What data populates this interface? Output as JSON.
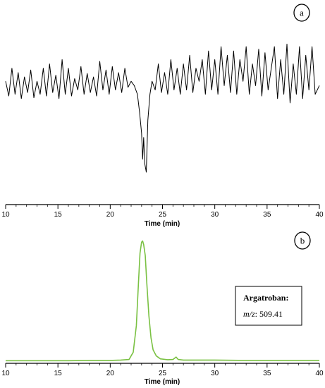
{
  "chart_data": [
    {
      "type": "line",
      "panel_label": "a",
      "xlabel": "Time (min)",
      "ylabel": "",
      "xlim": [
        10,
        40
      ],
      "xticks": [
        "10",
        "15",
        "20",
        "25",
        "30",
        "35",
        "40"
      ],
      "ylim": [
        -1.0,
        0.5
      ],
      "series": [
        {
          "color": "#000000",
          "x": [
            10.0,
            10.3,
            10.6,
            10.9,
            11.2,
            11.5,
            11.8,
            12.1,
            12.4,
            12.7,
            13.0,
            13.3,
            13.6,
            13.9,
            14.2,
            14.5,
            14.8,
            15.1,
            15.4,
            15.7,
            16.0,
            16.3,
            16.6,
            16.9,
            17.2,
            17.5,
            17.8,
            18.1,
            18.4,
            18.7,
            19.0,
            19.3,
            19.6,
            19.9,
            20.2,
            20.5,
            20.8,
            21.1,
            21.4,
            21.7,
            22.0,
            22.3,
            22.6,
            22.8,
            23.0,
            23.1,
            23.2,
            23.3,
            23.45,
            23.6,
            23.8,
            24.0,
            24.3,
            24.6,
            24.9,
            25.2,
            25.5,
            25.8,
            26.1,
            26.4,
            26.7,
            27.0,
            27.3,
            27.6,
            27.9,
            28.2,
            28.5,
            28.8,
            29.1,
            29.4,
            29.7,
            30.0,
            30.3,
            30.6,
            30.9,
            31.2,
            31.5,
            31.8,
            32.1,
            32.4,
            32.7,
            33.0,
            33.3,
            33.6,
            33.9,
            34.2,
            34.5,
            34.8,
            35.1,
            35.4,
            35.7,
            36.0,
            36.3,
            36.6,
            36.9,
            37.2,
            37.5,
            37.8,
            38.1,
            38.4,
            38.7,
            39.0,
            39.3,
            39.6,
            40.0
          ],
          "y": [
            0.05,
            -0.12,
            0.2,
            -0.1,
            0.15,
            -0.15,
            0.1,
            -0.08,
            0.18,
            -0.14,
            0.05,
            -0.1,
            0.2,
            -0.12,
            0.25,
            -0.08,
            0.12,
            -0.15,
            0.3,
            -0.1,
            0.2,
            -0.12,
            0.08,
            -0.05,
            0.22,
            -0.1,
            0.14,
            -0.08,
            0.1,
            -0.12,
            0.28,
            -0.05,
            0.18,
            -0.1,
            0.22,
            -0.05,
            0.15,
            -0.08,
            0.2,
            -0.02,
            0.05,
            0.0,
            -0.1,
            -0.3,
            -0.55,
            -0.85,
            -0.6,
            -0.9,
            -1.0,
            -0.4,
            -0.1,
            0.05,
            -0.05,
            0.25,
            -0.08,
            0.15,
            -0.1,
            0.3,
            -0.05,
            0.2,
            -0.1,
            0.25,
            -0.05,
            0.35,
            -0.08,
            0.2,
            0.05,
            0.3,
            -0.1,
            0.4,
            -0.05,
            0.3,
            -0.1,
            0.45,
            0.0,
            0.35,
            -0.08,
            0.4,
            -0.1,
            0.3,
            0.05,
            0.45,
            -0.1,
            0.25,
            0.0,
            0.42,
            -0.12,
            0.38,
            -0.05,
            0.2,
            0.45,
            -0.15,
            0.3,
            -0.1,
            0.48,
            -0.2,
            0.25,
            -0.1,
            0.45,
            -0.15,
            0.35,
            -0.05,
            0.45,
            -0.1,
            0.0
          ]
        }
      ]
    },
    {
      "type": "line",
      "panel_label": "b",
      "xlabel": "Time (min)",
      "ylabel": "",
      "xlim": [
        10,
        40
      ],
      "xticks": [
        "10",
        "15",
        "20",
        "25",
        "30",
        "35",
        "40"
      ],
      "ylim": [
        0,
        1.05
      ],
      "annotation": {
        "title": "Argatroban:",
        "mz_label": "m/z",
        "mz_value": ": 509.41"
      },
      "series": [
        {
          "color": "#7ac143",
          "x": [
            10.0,
            12.0,
            14.0,
            16.0,
            18.0,
            20.0,
            21.0,
            21.8,
            22.2,
            22.5,
            22.7,
            22.85,
            23.0,
            23.1,
            23.2,
            23.35,
            23.5,
            23.7,
            23.9,
            24.1,
            24.4,
            24.8,
            25.5,
            26.0,
            26.3,
            26.5,
            27.0,
            30.0,
            33.0,
            36.0,
            40.0
          ],
          "y": [
            0.01,
            0.01,
            0.01,
            0.01,
            0.012,
            0.012,
            0.015,
            0.02,
            0.08,
            0.3,
            0.65,
            0.9,
            0.99,
            1.0,
            0.97,
            0.88,
            0.65,
            0.38,
            0.2,
            0.1,
            0.05,
            0.025,
            0.018,
            0.02,
            0.04,
            0.02,
            0.015,
            0.015,
            0.012,
            0.012,
            0.012
          ]
        }
      ]
    }
  ]
}
